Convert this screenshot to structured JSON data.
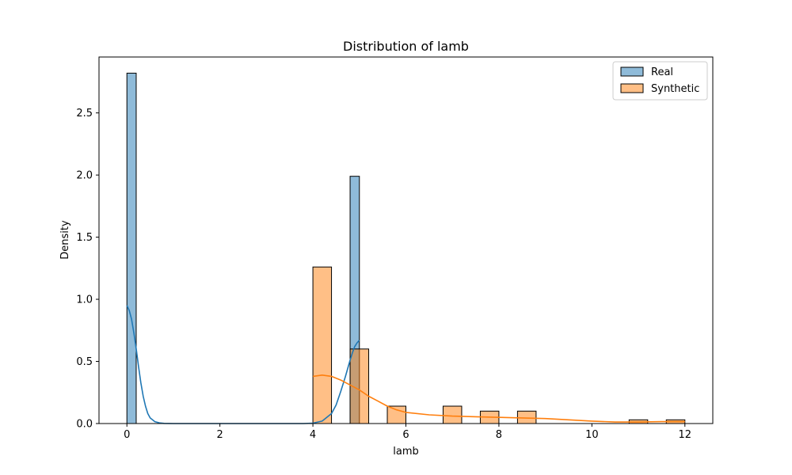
{
  "chart_data": {
    "type": "histogram",
    "title": "Distribution of lamb",
    "xlabel": "lamb",
    "ylabel": "Density",
    "xlim": [
      -0.6,
      12.6
    ],
    "ylim": [
      0,
      2.95
    ],
    "xticks": [
      0,
      2,
      4,
      6,
      8,
      10,
      12
    ],
    "xtick_labels": [
      "0",
      "2",
      "4",
      "6",
      "8",
      "10",
      "12"
    ],
    "yticks": [
      0.0,
      0.5,
      1.0,
      1.5,
      2.0,
      2.5
    ],
    "ytick_labels": [
      "0.0",
      "0.5",
      "1.0",
      "1.5",
      "2.0",
      "2.5"
    ],
    "grid": false,
    "legend_position": "top-right",
    "series": [
      {
        "name": "Real",
        "color": "#1f77b4",
        "bins": [
          {
            "x0": 0.0,
            "x1": 0.2,
            "density": 2.82
          },
          {
            "x0": 4.8,
            "x1": 5.0,
            "density": 1.99
          }
        ],
        "kde": {
          "x": [
            0.0,
            0.05,
            0.1,
            0.15,
            0.2,
            0.25,
            0.3,
            0.35,
            0.4,
            0.45,
            0.5,
            0.6,
            0.7,
            0.8,
            1.0,
            1.5,
            2.0,
            3.0,
            3.8,
            4.0,
            4.2,
            4.4,
            4.5,
            4.6,
            4.7,
            4.8,
            4.85,
            4.9,
            4.95,
            5.0
          ],
          "y": [
            0.95,
            0.91,
            0.84,
            0.73,
            0.6,
            0.46,
            0.33,
            0.22,
            0.14,
            0.08,
            0.045,
            0.015,
            0.005,
            0.001,
            0.0,
            0.0,
            0.0,
            0.0,
            0.0,
            0.003,
            0.02,
            0.08,
            0.15,
            0.26,
            0.38,
            0.51,
            0.57,
            0.62,
            0.65,
            0.67
          ]
        }
      },
      {
        "name": "Synthetic",
        "color": "#ff7f0e",
        "bins": [
          {
            "x0": 4.0,
            "x1": 4.4,
            "density": 1.26
          },
          {
            "x0": 4.4,
            "x1": 4.8,
            "density": 0.0
          },
          {
            "x0": 4.8,
            "x1": 5.2,
            "density": 0.6
          },
          {
            "x0": 5.2,
            "x1": 5.6,
            "density": 0.0
          },
          {
            "x0": 5.6,
            "x1": 6.0,
            "density": 0.14
          },
          {
            "x0": 6.0,
            "x1": 6.4,
            "density": 0.0
          },
          {
            "x0": 6.4,
            "x1": 6.8,
            "density": 0.0
          },
          {
            "x0": 6.8,
            "x1": 7.2,
            "density": 0.14
          },
          {
            "x0": 7.2,
            "x1": 7.6,
            "density": 0.0
          },
          {
            "x0": 7.6,
            "x1": 8.0,
            "density": 0.1
          },
          {
            "x0": 8.0,
            "x1": 8.4,
            "density": 0.0
          },
          {
            "x0": 8.4,
            "x1": 8.8,
            "density": 0.1
          },
          {
            "x0": 8.8,
            "x1": 9.2,
            "density": 0.0
          },
          {
            "x0": 9.2,
            "x1": 9.6,
            "density": 0.0
          },
          {
            "x0": 9.6,
            "x1": 10.0,
            "density": 0.0
          },
          {
            "x0": 10.0,
            "x1": 10.4,
            "density": 0.0
          },
          {
            "x0": 10.4,
            "x1": 10.8,
            "density": 0.0
          },
          {
            "x0": 10.8,
            "x1": 11.2,
            "density": 0.03
          },
          {
            "x0": 11.2,
            "x1": 11.6,
            "density": 0.0
          },
          {
            "x0": 11.6,
            "x1": 12.0,
            "density": 0.03
          }
        ],
        "kde": {
          "x": [
            4.0,
            4.2,
            4.4,
            4.6,
            4.8,
            5.0,
            5.2,
            5.4,
            5.6,
            5.8,
            6.0,
            6.5,
            7.0,
            7.5,
            8.0,
            8.5,
            9.0,
            9.5,
            10.0,
            10.5,
            11.0,
            11.5,
            12.0
          ],
          "y": [
            0.38,
            0.39,
            0.38,
            0.35,
            0.31,
            0.27,
            0.22,
            0.18,
            0.14,
            0.11,
            0.09,
            0.07,
            0.06,
            0.055,
            0.05,
            0.045,
            0.04,
            0.03,
            0.02,
            0.012,
            0.012,
            0.015,
            0.015
          ]
        }
      }
    ]
  }
}
